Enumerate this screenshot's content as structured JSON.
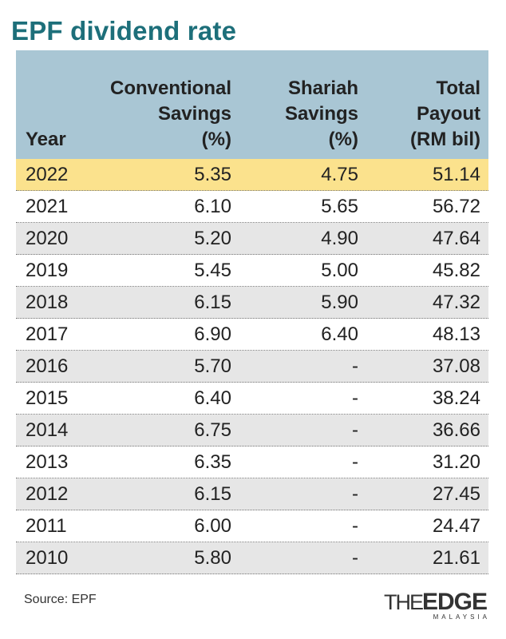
{
  "title": "EPF dividend rate",
  "chart_data": {
    "type": "table",
    "columns": [
      {
        "lines": [
          "Year"
        ]
      },
      {
        "lines": [
          "Conventional",
          "Savings",
          "(%)"
        ]
      },
      {
        "lines": [
          "Shariah",
          "Savings",
          "(%)"
        ]
      },
      {
        "lines": [
          "Total",
          "Payout",
          "(RM bil)"
        ]
      }
    ],
    "rows": [
      [
        "2022",
        "5.35",
        "4.75",
        "51.14"
      ],
      [
        "2021",
        "6.10",
        "5.65",
        "56.72"
      ],
      [
        "2020",
        "5.20",
        "4.90",
        "47.64"
      ],
      [
        "2019",
        "5.45",
        "5.00",
        "45.82"
      ],
      [
        "2018",
        "6.15",
        "5.90",
        "47.32"
      ],
      [
        "2017",
        "6.90",
        "6.40",
        "48.13"
      ],
      [
        "2016",
        "5.70",
        "-",
        "37.08"
      ],
      [
        "2015",
        "6.40",
        "-",
        "38.24"
      ],
      [
        "2014",
        "6.75",
        "-",
        "36.66"
      ],
      [
        "2013",
        "6.35",
        "-",
        "31.20"
      ],
      [
        "2012",
        "6.15",
        "-",
        "27.45"
      ],
      [
        "2011",
        "6.00",
        "-",
        "24.47"
      ],
      [
        "2010",
        "5.80",
        "-",
        "21.61"
      ]
    ],
    "highlight_row": 0
  },
  "source": "Source: EPF",
  "logo": {
    "the": "THE",
    "edge": "EDGE",
    "sub": "MALAYSIA"
  },
  "colors": {
    "title": "#1d6f7a",
    "header_bg": "#a9c6d4",
    "highlight": "#fbe28d",
    "stripe": "#e6e6e6"
  }
}
